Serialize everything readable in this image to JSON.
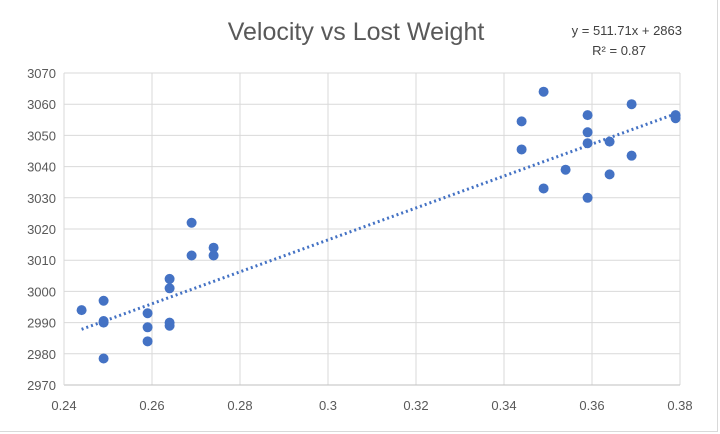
{
  "chart_data": {
    "type": "scatter",
    "title": "Velocity vs Lost Weight",
    "xlabel": "",
    "ylabel": "",
    "xlim": [
      0.24,
      0.38
    ],
    "ylim": [
      2970,
      3070
    ],
    "x_ticks": [
      0.24,
      0.26,
      0.28,
      0.3,
      0.32,
      0.34,
      0.36,
      0.38
    ],
    "x_tick_labels": [
      "0.24",
      "0.26",
      "0.28",
      "0.3",
      "0.32",
      "0.34",
      "0.36",
      "0.38"
    ],
    "y_ticks": [
      2970,
      2980,
      2990,
      3000,
      3010,
      3020,
      3030,
      3040,
      3050,
      3060,
      3070
    ],
    "y_tick_labels": [
      "2970",
      "2980",
      "2990",
      "3000",
      "3010",
      "3020",
      "3030",
      "3040",
      "3050",
      "3060",
      "3070"
    ],
    "grid": true,
    "series": [
      {
        "name": "Lost Weight",
        "color": "#4472c4",
        "points": [
          [
            0.244,
            2994
          ],
          [
            0.249,
            2997
          ],
          [
            0.249,
            2990
          ],
          [
            0.249,
            2990.5
          ],
          [
            0.249,
            2978.5
          ],
          [
            0.259,
            2993
          ],
          [
            0.259,
            2988.5
          ],
          [
            0.259,
            2984
          ],
          [
            0.264,
            3004
          ],
          [
            0.264,
            3001
          ],
          [
            0.264,
            2990
          ],
          [
            0.264,
            2989
          ],
          [
            0.269,
            3022
          ],
          [
            0.269,
            3011.5
          ],
          [
            0.274,
            3014
          ],
          [
            0.274,
            3011.5
          ],
          [
            0.344,
            3054.5
          ],
          [
            0.344,
            3045.5
          ],
          [
            0.349,
            3064
          ],
          [
            0.349,
            3033
          ],
          [
            0.354,
            3039
          ],
          [
            0.359,
            3056.5
          ],
          [
            0.359,
            3051
          ],
          [
            0.359,
            3047.5
          ],
          [
            0.359,
            3030
          ],
          [
            0.364,
            3048
          ],
          [
            0.364,
            3037.5
          ],
          [
            0.369,
            3060
          ],
          [
            0.369,
            3043.5
          ],
          [
            0.379,
            3056.5
          ],
          [
            0.379,
            3055.5
          ]
        ]
      }
    ],
    "trendline": {
      "type": "linear",
      "slope": 511.71,
      "intercept": 2863,
      "x_range": [
        0.244,
        0.379
      ],
      "style": "dotted",
      "color": "#4472c4",
      "equation_label": "y = 511.71x + 2863",
      "r2_label": "R² = 0.87"
    }
  }
}
